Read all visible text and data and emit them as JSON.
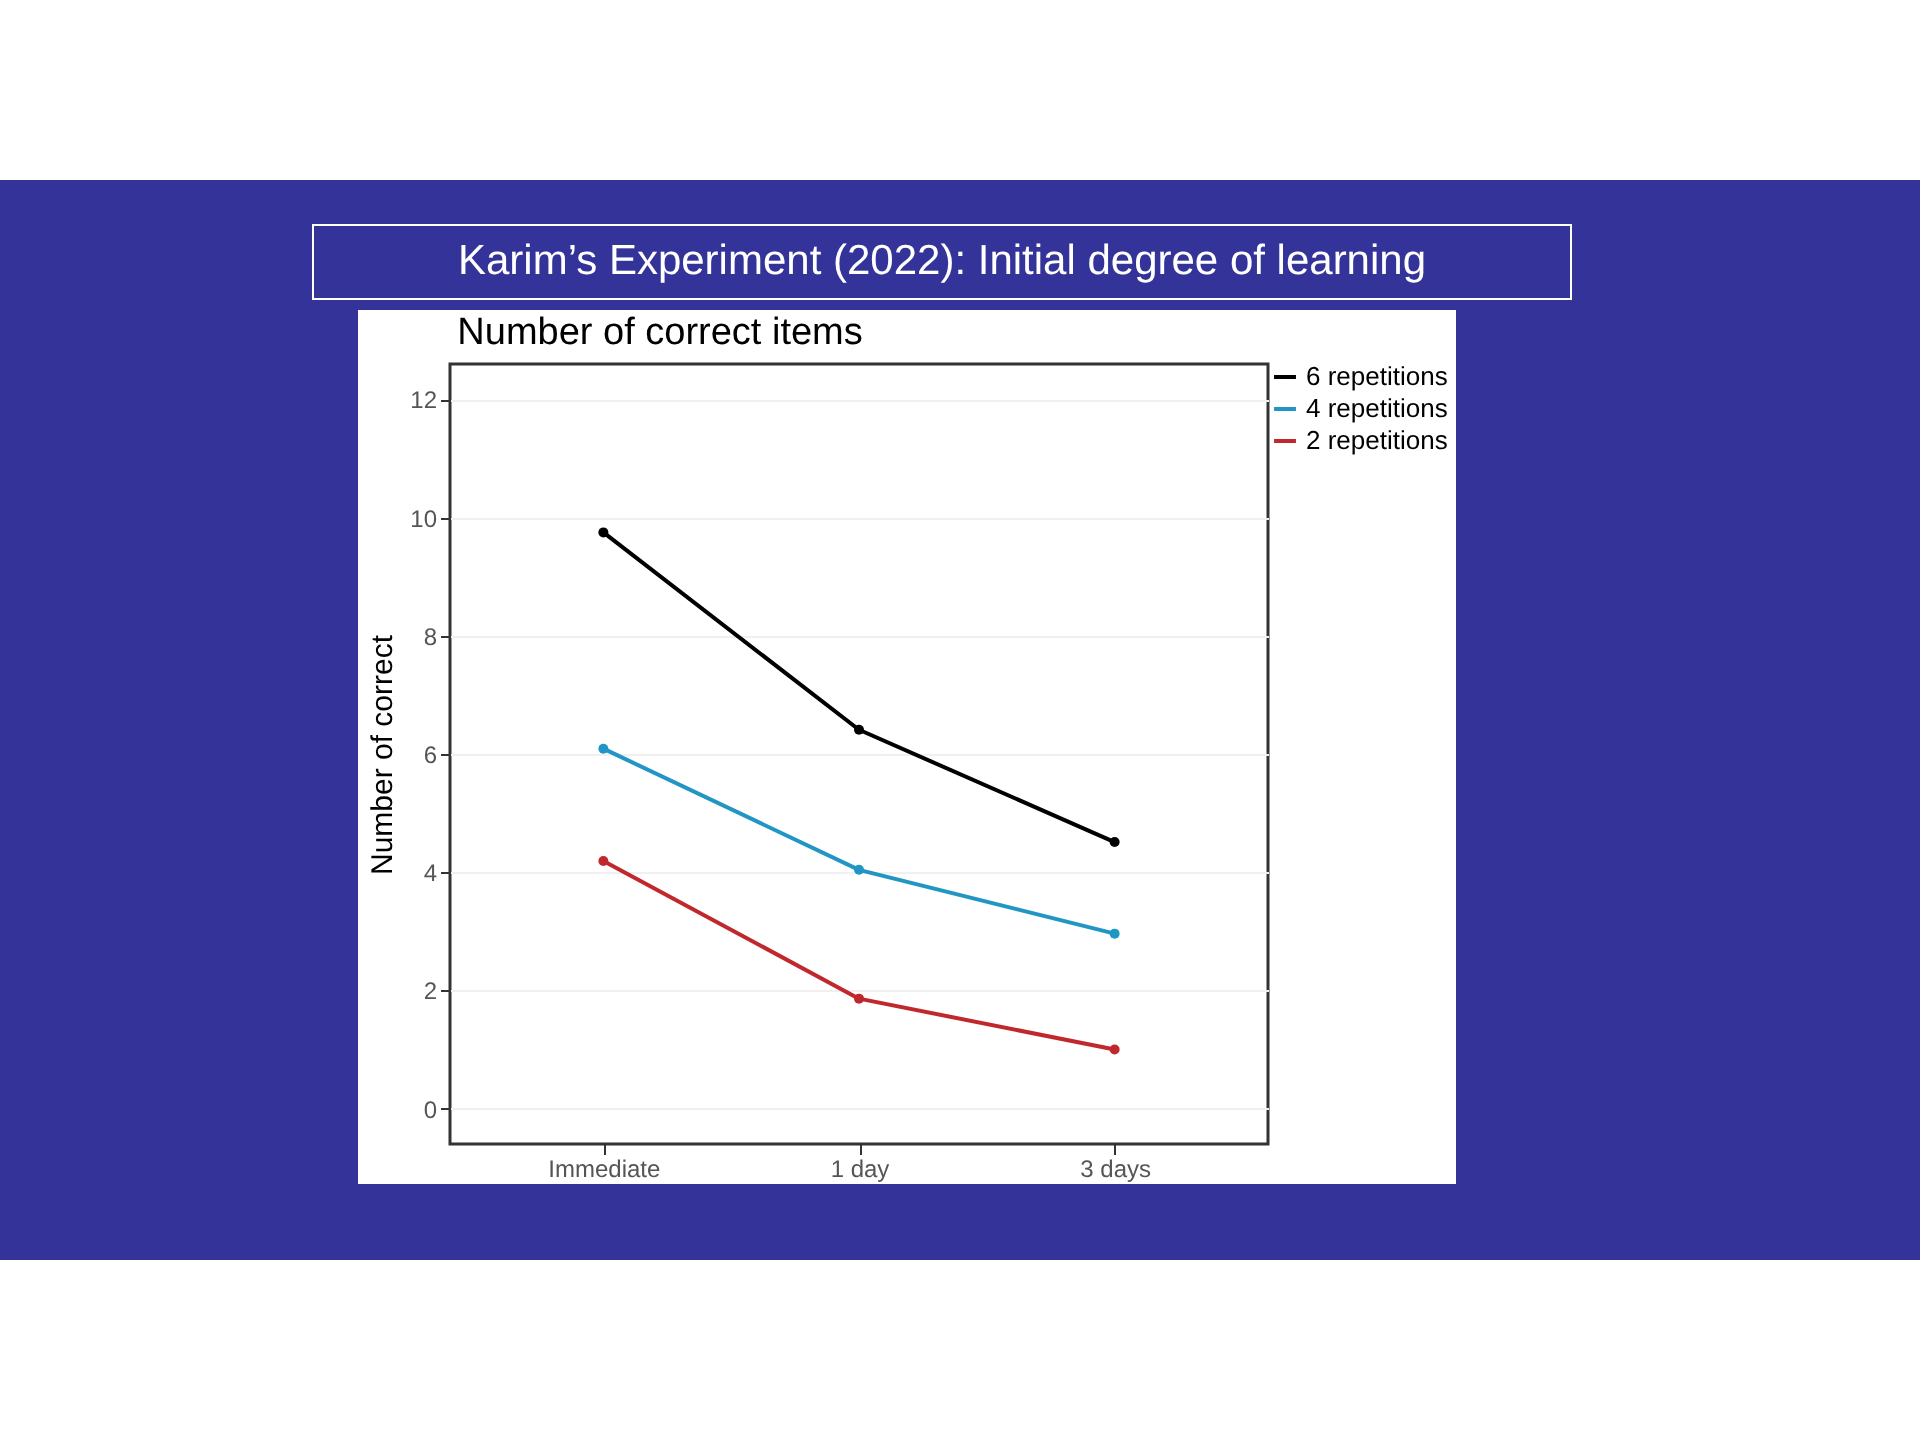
{
  "chart_data": {
    "type": "line",
    "title": "Karim’s Experiment (2022): Initial degree of learning",
    "subtitle": "Number of correct items",
    "ylabel": "Number of correct",
    "categories": [
      "Immediate",
      "1 day",
      "3 days"
    ],
    "series": [
      {
        "name": "6 repetitions",
        "color": "#000000",
        "values": [
          9.75,
          6.41,
          4.51
        ]
      },
      {
        "name": "4 repetitions",
        "color": "#2196c4",
        "values": [
          6.09,
          4.04,
          2.96
        ]
      },
      {
        "name": "2 repetitions",
        "color": "#c0282d",
        "values": [
          4.19,
          1.86,
          1.0
        ]
      }
    ],
    "ylim": [
      -0.6,
      12.6
    ],
    "yticks": [
      0,
      2,
      4,
      6,
      8,
      10,
      12
    ],
    "grid": "y",
    "legend": "right",
    "marker": "circle",
    "line_style": "solid"
  }
}
